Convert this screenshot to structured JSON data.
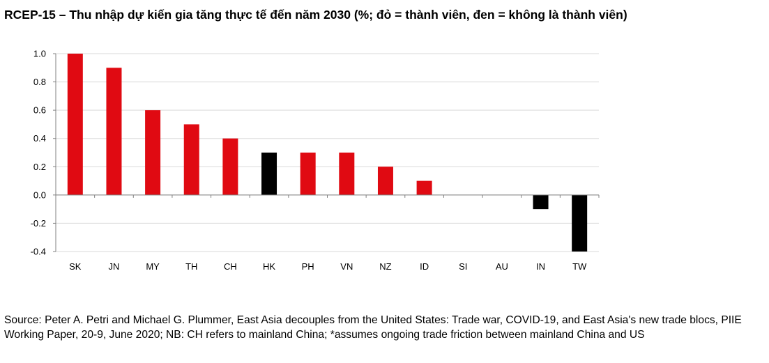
{
  "title": "RCEP-15 – Thu nhập dự kiến gia tăng thực tế đến năm 2030 (%; đỏ = thành viên, đen = không là thành viên)",
  "source": "Source: Peter A. Petri and Michael G. Plummer, East Asia decouples from the United States: Trade war, COVID-19, and East Asia's new trade blocs, PIIE Working Paper, 20-9, June 2020; NB: CH refers to mainland China; *assumes ongoing trade friction between mainland China and US",
  "chart_data": {
    "type": "bar",
    "categories": [
      "SK",
      "JN",
      "MY",
      "TH",
      "CH",
      "HK",
      "PH",
      "VN",
      "NZ",
      "ID",
      "SI",
      "AU",
      "IN",
      "TW"
    ],
    "values": [
      1.0,
      0.9,
      0.6,
      0.5,
      0.4,
      0.3,
      0.3,
      0.3,
      0.2,
      0.1,
      0.0,
      0.0,
      -0.1,
      -0.4
    ],
    "member": [
      true,
      true,
      true,
      true,
      true,
      false,
      true,
      true,
      true,
      true,
      true,
      true,
      false,
      false
    ],
    "colors": {
      "member": "#e00a12",
      "non_member": "#000000"
    },
    "ylim": [
      -0.4,
      1.0
    ],
    "yticks": [
      "1.0",
      "0.8",
      "0.6",
      "0.4",
      "0.2",
      "0.0",
      "-0.2",
      "-0.4"
    ],
    "ytick_values": [
      1.0,
      0.8,
      0.6,
      0.4,
      0.2,
      0.0,
      -0.2,
      -0.4
    ],
    "grid": true,
    "xlabel": "",
    "ylabel": ""
  }
}
